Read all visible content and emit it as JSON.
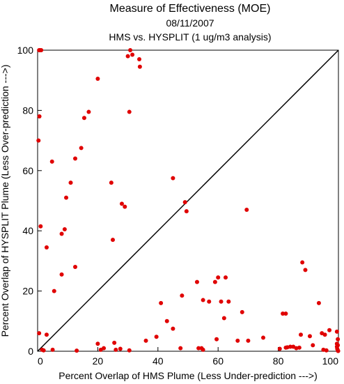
{
  "chart_data": {
    "type": "scatter",
    "title": "Measure of Effectiveness (MOE)",
    "subtitle": "08/11/2007",
    "subtitle2": "HMS vs. HYSPLIT  (1 ug/m3 analysis)",
    "xlabel": "Percent Overlap of HMS Plume (Less Under-prediction --->)",
    "ylabel": "Percent Overlap of HYSPLIT Plume (Less Over-prediction --->)",
    "xlim": [
      0,
      100
    ],
    "ylim": [
      0,
      100
    ],
    "xticks": [
      "0",
      "20",
      "40",
      "60",
      "80",
      "100"
    ],
    "yticks": [
      "0",
      "20",
      "40",
      "60",
      "80",
      "100"
    ],
    "grid": false,
    "reference_line": "y = x",
    "point_color": "#e00000",
    "points": [
      [
        0.5,
        100
      ],
      [
        0.8,
        100
      ],
      [
        1.2,
        100
      ],
      [
        0.6,
        78
      ],
      [
        0.3,
        70
      ],
      [
        1.0,
        41.5
      ],
      [
        0.5,
        6
      ],
      [
        1.5,
        0.5
      ],
      [
        2.0,
        0.3
      ],
      [
        3.0,
        34.5
      ],
      [
        3.0,
        5.5
      ],
      [
        4.8,
        63
      ],
      [
        5.5,
        20
      ],
      [
        5.0,
        0.5
      ],
      [
        8.0,
        39
      ],
      [
        8.0,
        25.5
      ],
      [
        9.0,
        40.5
      ],
      [
        9.5,
        51
      ],
      [
        11.0,
        56
      ],
      [
        12.5,
        64
      ],
      [
        12.5,
        28
      ],
      [
        13.0,
        0.2
      ],
      [
        14.5,
        67.5
      ],
      [
        15.5,
        77.5
      ],
      [
        17.0,
        79.5
      ],
      [
        20.0,
        90.5
      ],
      [
        20.0,
        2.5
      ],
      [
        21.0,
        0.5
      ],
      [
        22.0,
        1
      ],
      [
        24.5,
        56
      ],
      [
        25.0,
        37
      ],
      [
        25.5,
        2.8
      ],
      [
        26.0,
        0.5
      ],
      [
        27.5,
        0.8
      ],
      [
        28.0,
        49
      ],
      [
        29.0,
        48
      ],
      [
        30.0,
        98
      ],
      [
        30.5,
        79.5
      ],
      [
        30.8,
        100
      ],
      [
        31.5,
        98.5
      ],
      [
        30.5,
        0.3
      ],
      [
        33.8,
        97
      ],
      [
        34.0,
        94.5
      ],
      [
        36.0,
        3.5
      ],
      [
        39.5,
        4.8
      ],
      [
        41.0,
        16
      ],
      [
        43.0,
        10
      ],
      [
        45.0,
        57.5
      ],
      [
        45.0,
        7.5
      ],
      [
        47.5,
        1
      ],
      [
        48.0,
        18.5
      ],
      [
        49.0,
        49.5
      ],
      [
        49.5,
        46.5
      ],
      [
        53.0,
        23
      ],
      [
        53.5,
        1
      ],
      [
        54.5,
        1
      ],
      [
        55.0,
        0.5
      ],
      [
        55.0,
        17
      ],
      [
        57.0,
        16.5
      ],
      [
        59.0,
        23
      ],
      [
        60.0,
        24.5
      ],
      [
        59.5,
        4
      ],
      [
        61.0,
        16.5
      ],
      [
        62.5,
        24.5
      ],
      [
        62.0,
        11
      ],
      [
        63.5,
        16.5
      ],
      [
        66.5,
        3.5
      ],
      [
        68.0,
        13
      ],
      [
        70.0,
        3.5
      ],
      [
        69.5,
        47
      ],
      [
        75.0,
        4.5
      ],
      [
        80.5,
        0.8
      ],
      [
        81.5,
        12.5
      ],
      [
        82.5,
        12.5
      ],
      [
        82.5,
        1.2
      ],
      [
        83.0,
        1.3
      ],
      [
        84.0,
        1.5
      ],
      [
        85.0,
        1.5
      ],
      [
        86.0,
        1
      ],
      [
        87.0,
        1.2
      ],
      [
        87.5,
        5.5
      ],
      [
        88.0,
        29.5
      ],
      [
        89.0,
        27
      ],
      [
        90.5,
        5
      ],
      [
        91.5,
        2
      ],
      [
        93.5,
        16
      ],
      [
        94.5,
        6
      ],
      [
        95.5,
        5.5
      ],
      [
        95.0,
        0.5
      ],
      [
        96.0,
        0.3
      ],
      [
        97.0,
        7
      ],
      [
        99.5,
        6.5
      ],
      [
        99.8,
        4
      ],
      [
        99.5,
        2.5
      ],
      [
        99.8,
        2
      ],
      [
        99.5,
        1.5
      ],
      [
        99.6,
        0.8
      ],
      [
        99.8,
        0.3
      ],
      [
        99.9,
        0.1
      ]
    ]
  }
}
